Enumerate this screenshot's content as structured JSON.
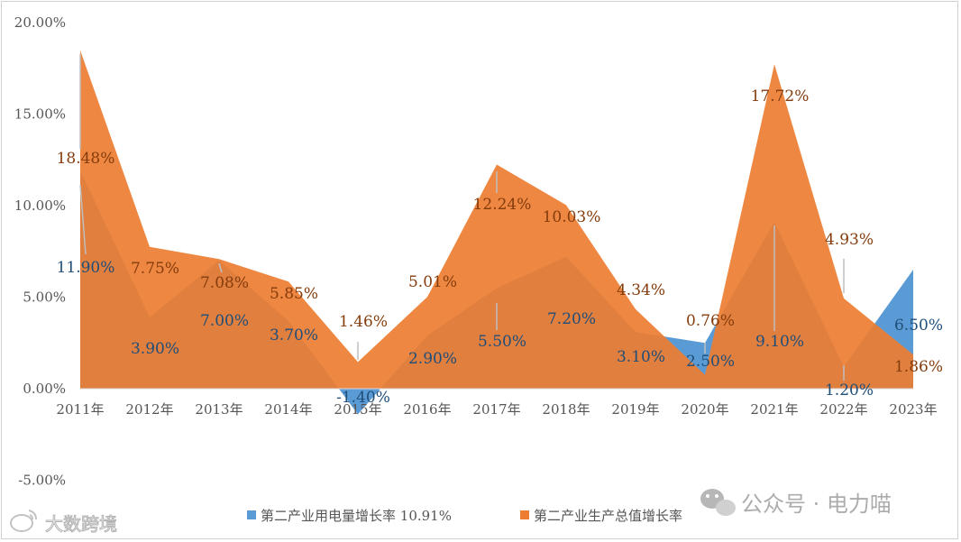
{
  "chart_data": {
    "type": "area",
    "categories": [
      "2011年",
      "2012年",
      "2013年",
      "2014年",
      "2015年",
      "2016年",
      "2017年",
      "2018年",
      "2019年",
      "2020年",
      "2021年",
      "2022年",
      "2023年"
    ],
    "series": [
      {
        "name": "第二产业用电量增长率 10.91%",
        "values": [
          11.9,
          3.9,
          7.0,
          3.7,
          -1.4,
          2.9,
          5.5,
          7.2,
          3.1,
          2.5,
          9.1,
          1.2,
          6.5
        ],
        "labels": [
          "11.90%",
          "3.90%",
          "7.00%",
          "3.70%",
          "-1.40%",
          "2.90%",
          "5.50%",
          "7.20%",
          "3.10%",
          "2.50%",
          "9.10%",
          "1.20%",
          "6.50%"
        ],
        "color": "#5b9bd5"
      },
      {
        "name": "第二产业生产总值增长率",
        "values": [
          18.48,
          7.75,
          7.08,
          5.85,
          1.46,
          5.01,
          12.24,
          10.03,
          4.34,
          0.76,
          17.72,
          4.93,
          1.86
        ],
        "labels": [
          "18.48%",
          "7.75%",
          "7.08%",
          "5.85%",
          "1.46%",
          "5.01%",
          "12.24%",
          "10.03%",
          "4.34%",
          "0.76%",
          "17.72%",
          "4.93%",
          "1.86%"
        ],
        "color": "#ed7d31"
      }
    ],
    "yticks": [
      "20.00%",
      "15.00%",
      "10.00%",
      "5.00%",
      "0.00%",
      "-5.00%"
    ],
    "ylim": [
      -5,
      20
    ],
    "grid": false,
    "legend": "bottom"
  },
  "watermark": {
    "left": "大数跨境",
    "right": "公众号 · 电力喵"
  }
}
